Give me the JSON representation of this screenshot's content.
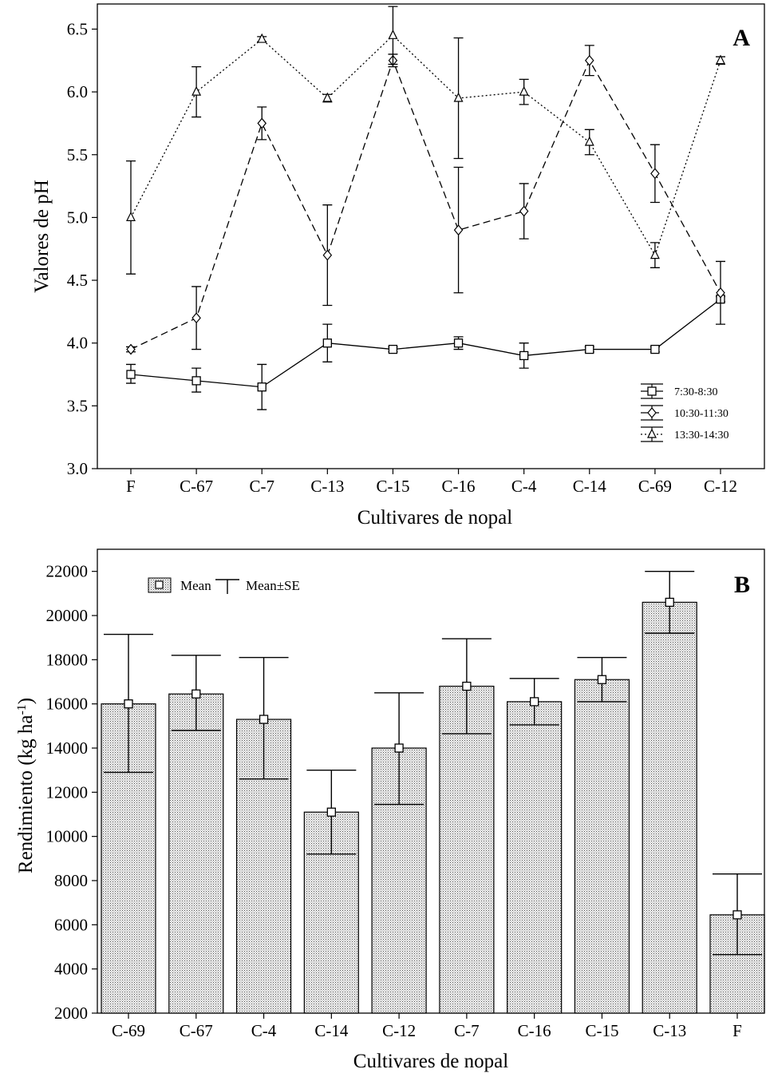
{
  "chart_data": [
    {
      "panel": "A",
      "type": "line",
      "xlabel": "Cultivares de nopal",
      "ylabel": "Valores de pH",
      "ylim": [
        3.0,
        6.7
      ],
      "yticks": [
        "3.0",
        "3.5",
        "4.0",
        "4.5",
        "5.0",
        "5.5",
        "6.0",
        "6.5"
      ],
      "categories": [
        "F",
        "C-67",
        "C-7",
        "C-13",
        "C-15",
        "C-16",
        "C-4",
        "C-14",
        "C-69",
        "C-12"
      ],
      "legend_position": "bottom-right",
      "grid": false,
      "series": [
        {
          "name": "7:30-8:30",
          "marker": "square",
          "line": "solid",
          "values": [
            3.75,
            3.7,
            3.65,
            4.0,
            3.95,
            4.0,
            3.9,
            3.95,
            3.95,
            4.35
          ],
          "err_low": [
            3.68,
            3.61,
            3.47,
            3.85,
            3.93,
            3.95,
            3.8,
            3.93,
            3.93,
            4.33
          ],
          "err_high": [
            3.83,
            3.8,
            3.83,
            4.15,
            3.97,
            4.05,
            4.0,
            3.97,
            3.97,
            4.37
          ]
        },
        {
          "name": "10:30-11:30",
          "marker": "diamond",
          "line": "dashed",
          "values": [
            3.95,
            4.2,
            5.75,
            4.7,
            6.25,
            4.9,
            5.05,
            6.25,
            5.35,
            4.4
          ],
          "err_low": [
            3.93,
            3.95,
            5.62,
            4.3,
            6.2,
            4.4,
            4.83,
            6.13,
            5.12,
            4.15
          ],
          "err_high": [
            3.97,
            4.45,
            5.88,
            5.1,
            6.3,
            5.4,
            5.27,
            6.37,
            5.58,
            4.65
          ]
        },
        {
          "name": "13:30-14:30",
          "marker": "triangle",
          "line": "dotted",
          "values": [
            5.0,
            6.0,
            6.42,
            5.95,
            6.45,
            5.95,
            6.0,
            5.6,
            4.7,
            6.25
          ],
          "err_low": [
            4.55,
            5.8,
            6.4,
            5.92,
            6.22,
            5.47,
            5.9,
            5.5,
            4.6,
            6.22
          ],
          "err_high": [
            5.45,
            6.2,
            6.44,
            5.98,
            6.68,
            6.43,
            6.1,
            5.7,
            4.8,
            6.28
          ]
        }
      ]
    },
    {
      "panel": "B",
      "type": "bar",
      "xlabel": "Cultivares de nopal",
      "ylabel": "Rendimiento (kg ha",
      "ylabel_sup": "-1",
      "ylabel_end": ")",
      "ylim": [
        2000,
        23000
      ],
      "yticks": [
        "2000",
        "4000",
        "6000",
        "8000",
        "10000",
        "12000",
        "14000",
        "16000",
        "18000",
        "20000",
        "22000"
      ],
      "categories": [
        "C-69",
        "C-67",
        "C-4",
        "C-14",
        "C-12",
        "C-7",
        "C-16",
        "C-15",
        "C-13",
        "F"
      ],
      "legend": {
        "mean_label": "Mean",
        "se_label": "Mean±SE"
      },
      "legend_position": "top-left",
      "grid": false,
      "values": [
        16000,
        16450,
        15300,
        11100,
        14000,
        16800,
        16100,
        17100,
        20600,
        6450
      ],
      "se_low": [
        12900,
        14800,
        12600,
        9200,
        11450,
        14650,
        15050,
        16100,
        19200,
        4650
      ],
      "se_high": [
        19150,
        18200,
        18100,
        13000,
        16500,
        18950,
        17150,
        18100,
        22000,
        8300
      ]
    }
  ]
}
